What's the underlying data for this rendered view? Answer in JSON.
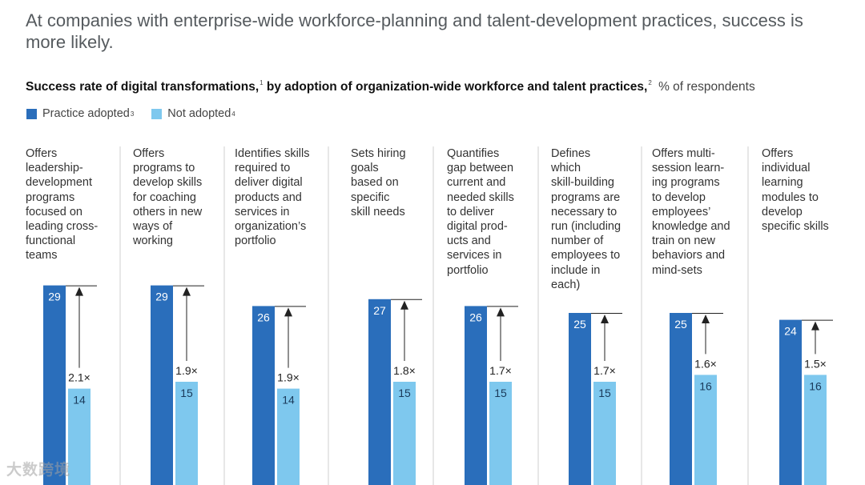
{
  "headline": "At companies with enterprise-wide workforce-planning and talent-development practices, success is more likely.",
  "subtitle": {
    "part1": "Success rate of digital transformations,",
    "sup1": "1",
    "part2": "by adoption of organization-wide workforce and talent practices,",
    "sup2": "2",
    "unit": "% of respondents"
  },
  "colors": {
    "adopted": "#2a6ebb",
    "not_adopted": "#7ec8ee",
    "divider": "#cfcfcf",
    "text": "#333333"
  },
  "watermark": "大数跨境",
  "chart_data": {
    "type": "bar",
    "title": "Success rate of digital transformations, by adoption of organization-wide workforce and talent practices, % of respondents",
    "categories": [
      "Offers leadership-development programs focused on leading cross-functional teams",
      "Offers programs to develop skills for coaching others in new ways of working",
      "Identifies skills required to deliver digital products and services in organization's portfolio",
      "Sets hiring goals based on specific skill needs",
      "Quantifies gap between current and needed skills to deliver digital products and services in portfolio",
      "Defines which skill-building programs are necessary to run (including number of employees to include in each)",
      "Offers multi-session learning programs to develop employees' knowledge and train on new behaviors and mind-sets",
      "Offers individual learning modules to develop specific skills"
    ],
    "category_lines": [
      [
        "Offers",
        "leadership-",
        "development",
        "programs",
        "focused on",
        "leading cross-",
        "functional",
        "teams"
      ],
      [
        "Offers",
        "programs to",
        "develop skills",
        "for coaching",
        "others in new",
        "ways of",
        "working"
      ],
      [
        "Identifies skills",
        "required to",
        "deliver digital",
        "products and",
        "services in",
        "organization’s",
        "portfolio"
      ],
      [
        "Sets hiring",
        "goals",
        "based on",
        "specific",
        "skill needs"
      ],
      [
        "Quantifies",
        "gap between",
        "current and",
        "needed skills",
        "to deliver",
        "digital prod-",
        "ucts and",
        "services in",
        "portfolio"
      ],
      [
        "Defines",
        "which",
        "skill-building",
        "programs are",
        "necessary to",
        "run (including",
        "number of",
        "employees to",
        "include in",
        "each)"
      ],
      [
        "Offers multi-",
        "session learn-",
        "ing programs",
        "to develop",
        "employees’",
        "knowledge and",
        "train on new",
        "behaviors and",
        "mind-sets"
      ],
      [
        "Offers",
        "individual",
        "learning",
        "modules to",
        "develop",
        "specific skills"
      ]
    ],
    "series": [
      {
        "name": "Practice adopted",
        "footnote": "3",
        "values": [
          29,
          29,
          26,
          27,
          26,
          25,
          25,
          24
        ]
      },
      {
        "name": "Not adopted",
        "footnote": "4",
        "values": [
          14,
          15,
          14,
          15,
          15,
          15,
          16,
          16
        ]
      }
    ],
    "multipliers": [
      "2.1×",
      "1.9×",
      "1.9×",
      "1.8×",
      "1.7×",
      "1.7×",
      "1.6×",
      "1.5×"
    ],
    "ylim": [
      0,
      29
    ],
    "xlabel": "",
    "ylabel": "% of respondents",
    "legend": "top-left"
  }
}
